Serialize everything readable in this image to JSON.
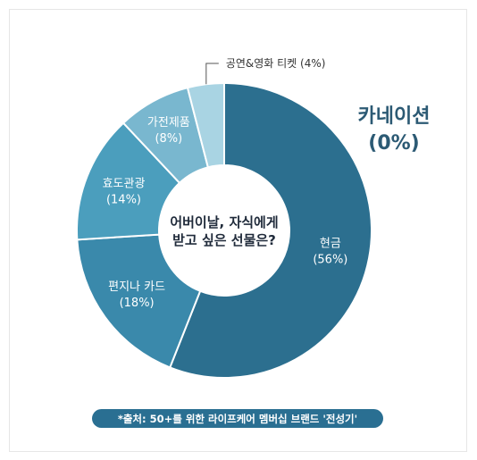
{
  "chart_data": {
    "type": "pie",
    "title": "어버이날, 자식에게 받고 싶은 선물은?",
    "title_lines": [
      "어버이날, 자식에게",
      "받고 싶은 선물은?"
    ],
    "slices": [
      {
        "label": "현금",
        "pct_text": "(56%)",
        "value": 56,
        "color": "#2c6f8f"
      },
      {
        "label": "편지나 카드",
        "pct_text": "(18%)",
        "value": 18,
        "color": "#3a89ab"
      },
      {
        "label": "효도관광",
        "pct_text": "(14%)",
        "value": 14,
        "color": "#4b9ebd"
      },
      {
        "label": "가전제품",
        "pct_text": "(8%)",
        "value": 8,
        "color": "#79b7cf"
      },
      {
        "label": "공연&영화 티켓",
        "pct_text": "(4%)",
        "value": 4,
        "color": "#a9d4e3"
      },
      {
        "label": "카네이션",
        "pct_text": "(0%)",
        "value": 0,
        "color": "#2c5a74"
      }
    ]
  },
  "source": "*출처: 50+를 위한 라이프케어 멤버십 브랜드 '전성기'"
}
